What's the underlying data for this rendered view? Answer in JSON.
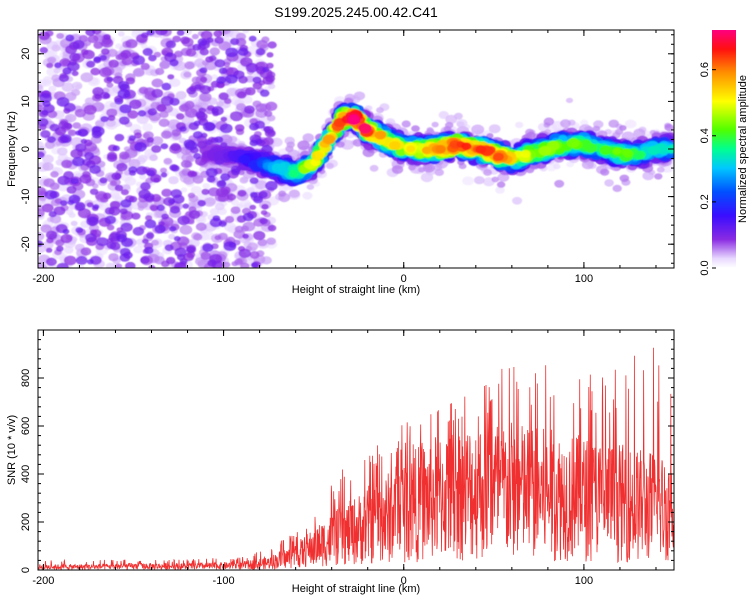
{
  "title": "S199.2025.245.00.42.C41",
  "chart_data": [
    {
      "type": "heatmap",
      "name": "spectrogram",
      "xlabel": "Height of straight line (km)",
      "ylabel": "Frequency (Hz)",
      "xlim": [
        -203,
        150
      ],
      "ylim": [
        -25,
        25
      ],
      "xticks": [
        -200,
        -100,
        0,
        100
      ],
      "yticks": [
        -20,
        -10,
        0,
        10,
        20
      ],
      "colorbar": {
        "label": "Normalized spectral amplitude",
        "range": [
          0,
          0.72
        ],
        "ticks": [
          0.0,
          0.2,
          0.4,
          0.6
        ],
        "tick_labels": [
          "0.0",
          "0.2",
          "0.4",
          "0.6"
        ]
      },
      "ridge": {
        "x": [
          -203,
          -190,
          -175,
          -160,
          -140,
          -120,
          -100,
          -90,
          -80,
          -70,
          -60,
          -50,
          -45,
          -40,
          -35,
          -30,
          -25,
          -20,
          -15,
          -10,
          -5,
          0,
          10,
          20,
          30,
          40,
          50,
          60,
          70,
          80,
          90,
          100,
          110,
          120,
          130,
          140,
          150
        ],
        "freq": [
          0,
          -1,
          -2,
          -1,
          0,
          -1,
          -1,
          -2,
          -3,
          -4,
          -5,
          -3,
          0,
          3,
          6,
          7,
          6,
          4,
          3,
          2,
          1,
          0,
          0,
          0,
          1,
          0,
          -1,
          -2,
          -1,
          0,
          1,
          1,
          0,
          -1,
          -1,
          0,
          0
        ],
        "peak_amplitude": [
          0.05,
          0.06,
          0.05,
          0.06,
          0.07,
          0.08,
          0.1,
          0.15,
          0.2,
          0.28,
          0.35,
          0.45,
          0.5,
          0.55,
          0.6,
          0.65,
          0.7,
          0.62,
          0.55,
          0.5,
          0.48,
          0.45,
          0.5,
          0.55,
          0.6,
          0.55,
          0.62,
          0.5,
          0.45,
          0.42,
          0.4,
          0.38,
          0.35,
          0.4,
          0.35,
          0.3,
          0.3
        ]
      }
    },
    {
      "type": "line",
      "name": "snr",
      "xlabel": "Height of straight line (km)",
      "ylabel": "SNR (10 * v/v)",
      "xlim": [
        -203,
        150
      ],
      "ylim": [
        0,
        1000
      ],
      "xticks": [
        -200,
        -100,
        0,
        100
      ],
      "yticks": [
        0,
        200,
        400,
        600,
        800
      ],
      "color": "#f03030",
      "envelope": {
        "x": [
          -203,
          -180,
          -150,
          -120,
          -90,
          -75,
          -60,
          -50,
          -40,
          -30,
          -20,
          -10,
          0,
          10,
          20,
          30,
          40,
          50,
          60,
          70,
          80,
          90,
          100,
          110,
          120,
          130,
          140,
          150
        ],
        "mean": [
          15,
          15,
          18,
          18,
          22,
          35,
          70,
          110,
          150,
          180,
          220,
          250,
          300,
          330,
          360,
          380,
          390,
          400,
          390,
          380,
          370,
          360,
          350,
          340,
          330,
          320,
          310,
          300
        ],
        "peak": [
          45,
          40,
          45,
          45,
          55,
          90,
          160,
          250,
          360,
          460,
          500,
          560,
          650,
          620,
          680,
          720,
          760,
          820,
          880,
          800,
          900,
          880,
          860,
          850,
          840,
          960,
          940,
          880
        ]
      }
    }
  ]
}
